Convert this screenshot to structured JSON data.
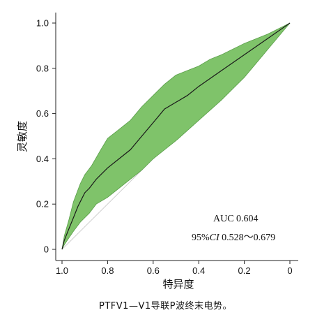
{
  "caption": "PTFV1—V1导联P波终末电势。",
  "chart_data": {
    "type": "line",
    "title": "",
    "xlabel": "特异度",
    "ylabel": "灵敏度",
    "x_reversed": true,
    "xlim": [
      1.0,
      0.0
    ],
    "ylim": [
      0.0,
      1.0
    ],
    "grid": false,
    "x_ticks": [
      1.0,
      0.8,
      0.6,
      0.4,
      0.2,
      0
    ],
    "x_tick_labels": [
      "1.0",
      "0.8",
      "0.6",
      "0.4",
      "0.2",
      "0"
    ],
    "y_ticks": [
      0,
      0.2,
      0.4,
      0.6,
      0.8,
      1.0
    ],
    "y_tick_labels": [
      "0",
      "0.2",
      "0.4",
      "0.6",
      "0.8",
      "1.0"
    ],
    "colors": {
      "band": "#7fc36a",
      "band_edge": "#5a9e4a",
      "curve": "#1a1a1a",
      "diagonal": "#cfcfcf"
    },
    "series": [
      {
        "role": "roc",
        "x": [
          1.0,
          0.99,
          0.97,
          0.95,
          0.93,
          0.9,
          0.88,
          0.85,
          0.8,
          0.75,
          0.7,
          0.65,
          0.6,
          0.55,
          0.5,
          0.45,
          0.4,
          0.3,
          0.2,
          0.1,
          0.0
        ],
        "y": [
          0.0,
          0.04,
          0.09,
          0.14,
          0.19,
          0.25,
          0.27,
          0.31,
          0.36,
          0.4,
          0.44,
          0.5,
          0.56,
          0.62,
          0.65,
          0.68,
          0.72,
          0.79,
          0.86,
          0.93,
          1.0
        ]
      },
      {
        "role": "ci_upper",
        "x": [
          1.0,
          0.99,
          0.97,
          0.95,
          0.92,
          0.9,
          0.87,
          0.83,
          0.8,
          0.75,
          0.7,
          0.65,
          0.6,
          0.55,
          0.5,
          0.45,
          0.4,
          0.35,
          0.3,
          0.2,
          0.1,
          0.0
        ],
        "y": [
          0.0,
          0.06,
          0.13,
          0.21,
          0.29,
          0.33,
          0.37,
          0.44,
          0.49,
          0.53,
          0.57,
          0.63,
          0.68,
          0.73,
          0.77,
          0.79,
          0.81,
          0.84,
          0.86,
          0.91,
          0.95,
          1.0
        ]
      },
      {
        "role": "ci_lower",
        "x": [
          1.0,
          0.99,
          0.97,
          0.95,
          0.92,
          0.88,
          0.85,
          0.8,
          0.75,
          0.7,
          0.65,
          0.6,
          0.55,
          0.5,
          0.4,
          0.3,
          0.2,
          0.1,
          0.0
        ],
        "y": [
          0.0,
          0.02,
          0.05,
          0.08,
          0.12,
          0.16,
          0.2,
          0.23,
          0.27,
          0.31,
          0.35,
          0.4,
          0.44,
          0.48,
          0.57,
          0.66,
          0.76,
          0.88,
          1.0
        ]
      },
      {
        "role": "reference",
        "x": [
          1.0,
          0.0
        ],
        "y": [
          0.0,
          1.0
        ]
      }
    ],
    "annotations": {
      "auc": "AUC 0.604",
      "ci_prefix": "95%",
      "ci_label": "CI",
      "ci_values": " 0.528～0.679"
    }
  }
}
